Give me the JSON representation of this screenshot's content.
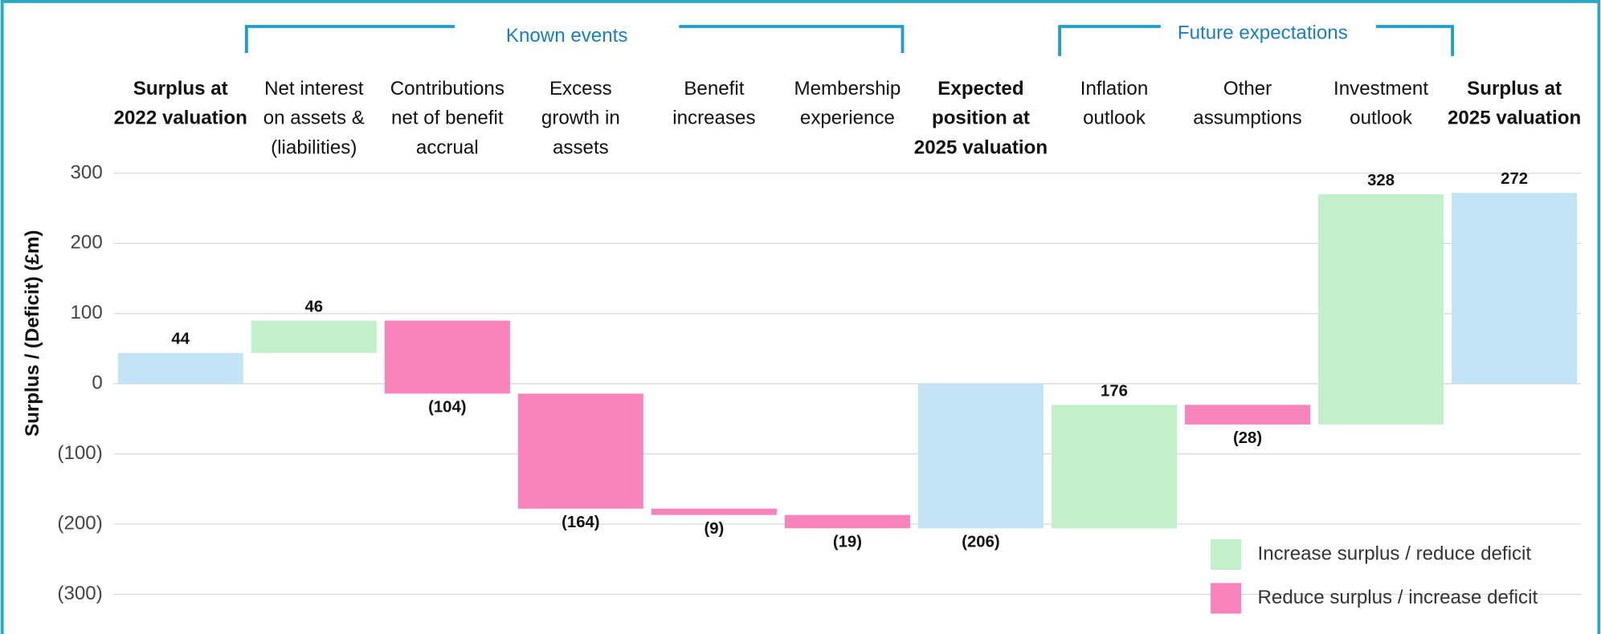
{
  "chart_data": {
    "type": "waterfall",
    "y_label": "Surplus / (Deficit) (£m)",
    "group_labels": [
      "Known events",
      "Future expectations"
    ],
    "categories": [
      "Surplus at\n2022 valuation",
      "Net interest\non assets &\n(liabilities)",
      "Contributions\nnet of benefit\naccrual",
      "Excess\ngrowth in\nassets",
      "Benefit\nincreases",
      "Membership\nexperience",
      "Expected\nposition at\n2025 valuation",
      "Inflation\noutlook",
      "Other\nassumptions",
      "Investment\noutlook",
      "Surplus at\n2025 valuation"
    ],
    "measures": [
      "total",
      "relative",
      "relative",
      "relative",
      "relative",
      "relative",
      "total",
      "relative",
      "relative",
      "relative",
      "total"
    ],
    "values": [
      44,
      46,
      -104,
      -164,
      -9,
      -19,
      -206,
      176,
      -28,
      328,
      272
    ],
    "value_labels": [
      "44",
      "46",
      "(104)",
      "(164)",
      "(9)",
      "(19)",
      "(206)",
      "176",
      "(28)",
      "328",
      "272"
    ],
    "total_color": "#c3e4f4",
    "legend": [
      {
        "name": "Increase surplus / reduce deficit",
        "color": "#c2f0c8"
      },
      {
        "name": "Reduce surplus / increase deficit",
        "color": "#f984bb"
      }
    ],
    "ylim": [
      -300,
      300
    ],
    "yticks": [
      {
        "value": -300,
        "label": "(300)"
      },
      {
        "value": -200,
        "label": "(200)"
      },
      {
        "value": -100,
        "label": "(100)"
      },
      0,
      100,
      200,
      300
    ],
    "grid": true
  }
}
